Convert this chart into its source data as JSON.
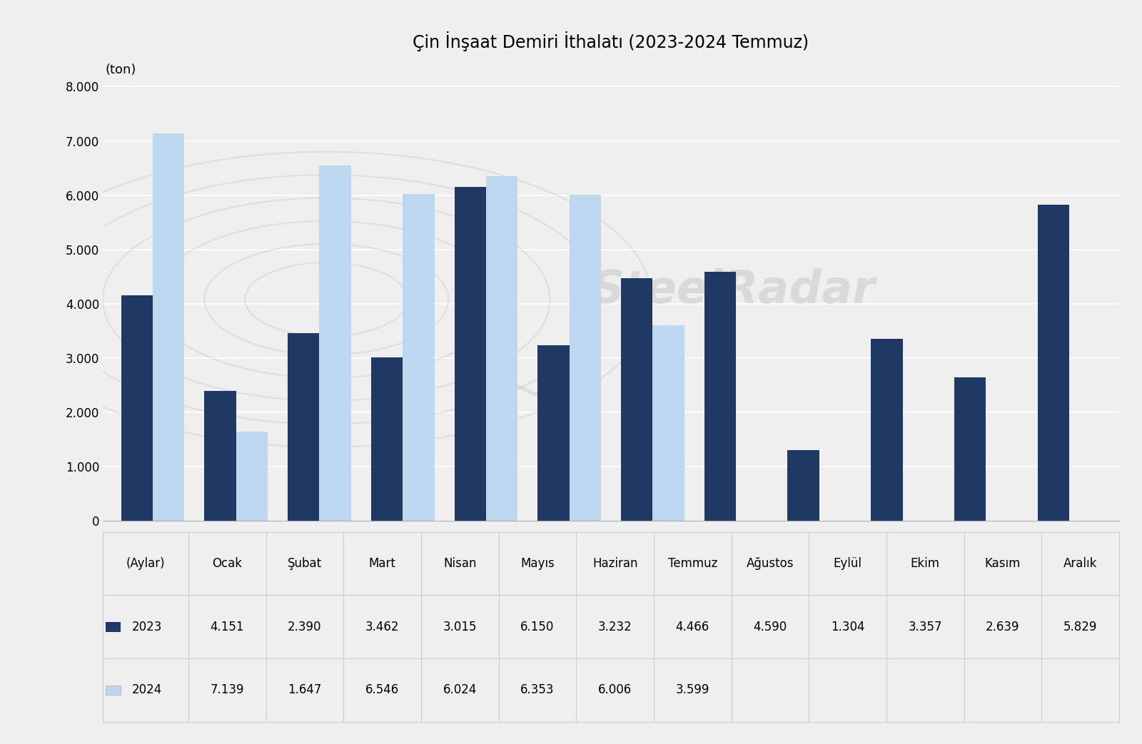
{
  "title": "Çin İnşaat Demiri İthalatı (2023-2024 Temmuz)",
  "ylabel": "(ton)",
  "xlabel_label": "(Aylar)",
  "months": [
    "Ocak",
    "Şubat",
    "Mart",
    "Nisan",
    "Mayıs",
    "Haziran",
    "Temmuz",
    "Ağustos",
    "Eylül",
    "Ekim",
    "Kasım",
    "Aralık"
  ],
  "data_2023": [
    4151,
    2390,
    3462,
    3015,
    6150,
    3232,
    4466,
    4590,
    1304,
    3357,
    2639,
    5829
  ],
  "data_2024": [
    7139,
    1647,
    6546,
    6024,
    6353,
    6006,
    3599,
    null,
    null,
    null,
    null,
    null
  ],
  "color_2023": "#1F3864",
  "color_2024": "#BDD7EE",
  "ylim": [
    0,
    8500
  ],
  "yticks": [
    0,
    1000,
    2000,
    3000,
    4000,
    5000,
    6000,
    7000,
    8000
  ],
  "ytick_labels": [
    "0",
    "1.000",
    "2.000",
    "3.000",
    "4.000",
    "5.000",
    "6.000",
    "7.000",
    "8.000"
  ],
  "table_row1_label": "2023",
  "table_row1": [
    "4.151",
    "2.390",
    "3.462",
    "3.015",
    "6.150",
    "3.232",
    "4.466",
    "4.590",
    "1.304",
    "3.357",
    "2.639",
    "5.829"
  ],
  "table_row2_label": "2024",
  "table_row2": [
    "7.139",
    "1.647",
    "6.546",
    "6.024",
    "6.353",
    "6.006",
    "3.599",
    "",
    "",
    "",
    "",
    ""
  ],
  "background_color": "#EFEFEF",
  "bar_width": 0.38,
  "title_fontsize": 17,
  "tick_fontsize": 12,
  "table_fontsize": 12
}
